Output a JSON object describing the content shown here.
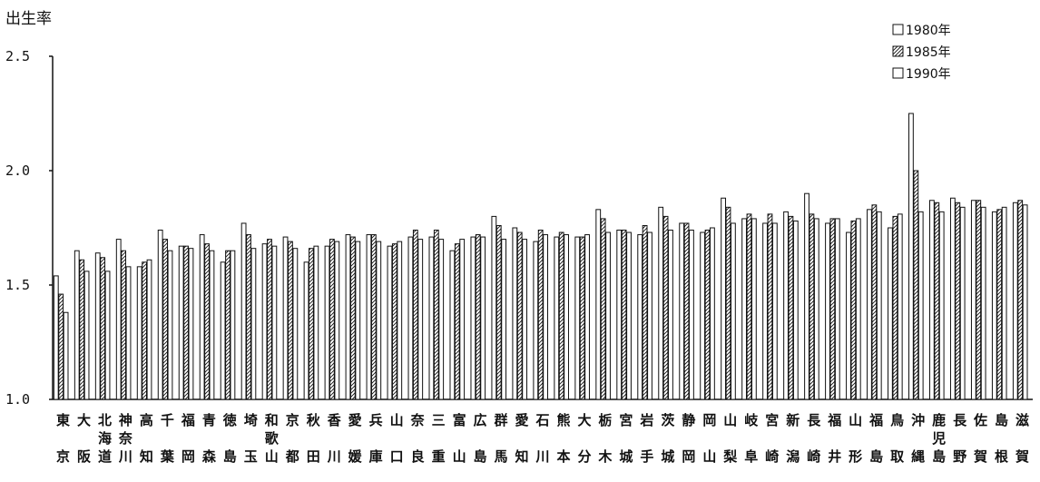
{
  "chart_data": {
    "type": "bar",
    "ylabel": "出生率",
    "ylim": [
      1.0,
      2.5
    ],
    "yticks": [
      "1.0",
      "1.5",
      "2.0",
      "2.5"
    ],
    "legend_position": "top-right",
    "categories": [
      [
        "東",
        "京"
      ],
      [
        "大",
        "阪"
      ],
      [
        "北",
        "海",
        "道"
      ],
      [
        "神",
        "奈",
        "川"
      ],
      [
        "高",
        "知"
      ],
      [
        "千",
        "葉"
      ],
      [
        "福",
        "岡"
      ],
      [
        "青",
        "森"
      ],
      [
        "徳",
        "島"
      ],
      [
        "埼",
        "玉"
      ],
      [
        "和",
        "歌",
        "山"
      ],
      [
        "京",
        "都"
      ],
      [
        "秋",
        "田"
      ],
      [
        "香",
        "川"
      ],
      [
        "愛",
        "媛"
      ],
      [
        "兵",
        "庫"
      ],
      [
        "山",
        "口"
      ],
      [
        "奈",
        "良"
      ],
      [
        "三",
        "重"
      ],
      [
        "富",
        "山"
      ],
      [
        "広",
        "島"
      ],
      [
        "群",
        "馬"
      ],
      [
        "愛",
        "知"
      ],
      [
        "石",
        "川"
      ],
      [
        "熊",
        "本"
      ],
      [
        "大",
        "分"
      ],
      [
        "栃",
        "木"
      ],
      [
        "宮",
        "城"
      ],
      [
        "岩",
        "手"
      ],
      [
        "茨",
        "城"
      ],
      [
        "静",
        "岡"
      ],
      [
        "岡",
        "山"
      ],
      [
        "山",
        "梨"
      ],
      [
        "岐",
        "阜"
      ],
      [
        "宮",
        "崎"
      ],
      [
        "新",
        "潟"
      ],
      [
        "長",
        "崎"
      ],
      [
        "福",
        "井"
      ],
      [
        "山",
        "形"
      ],
      [
        "福",
        "島"
      ],
      [
        "鳥",
        "取"
      ],
      [
        "沖",
        "縄"
      ],
      [
        "鹿",
        "児",
        "島"
      ],
      [
        "長",
        "野"
      ],
      [
        "佐",
        "賀"
      ],
      [
        "島",
        "根"
      ],
      [
        "滋",
        "賀"
      ]
    ],
    "series": [
      {
        "name": "1980年",
        "pattern": "blank",
        "values": [
          1.54,
          1.65,
          1.64,
          1.7,
          1.58,
          1.74,
          1.67,
          1.72,
          1.6,
          1.77,
          1.68,
          1.71,
          1.6,
          1.67,
          1.72,
          1.72,
          1.67,
          1.71,
          1.71,
          1.65,
          1.71,
          1.8,
          1.75,
          1.69,
          1.71,
          1.71,
          1.83,
          1.74,
          1.72,
          1.84,
          1.77,
          1.73,
          1.88,
          1.79,
          1.77,
          1.82,
          1.9,
          1.77,
          1.73,
          1.83,
          1.75,
          2.25,
          1.87,
          1.88,
          1.87,
          1.82,
          1.86
        ]
      },
      {
        "name": "1985年",
        "pattern": "hatched",
        "values": [
          1.46,
          1.61,
          1.62,
          1.65,
          1.6,
          1.7,
          1.67,
          1.68,
          1.65,
          1.72,
          1.7,
          1.69,
          1.66,
          1.7,
          1.71,
          1.72,
          1.68,
          1.74,
          1.74,
          1.68,
          1.72,
          1.76,
          1.73,
          1.74,
          1.73,
          1.71,
          1.79,
          1.74,
          1.76,
          1.8,
          1.77,
          1.74,
          1.84,
          1.81,
          1.81,
          1.8,
          1.81,
          1.79,
          1.78,
          1.85,
          1.8,
          2.0,
          1.86,
          1.86,
          1.87,
          1.83,
          1.87
        ]
      },
      {
        "name": "1990年",
        "pattern": "blank",
        "values": [
          1.38,
          1.56,
          1.56,
          1.58,
          1.61,
          1.65,
          1.66,
          1.65,
          1.65,
          1.66,
          1.67,
          1.66,
          1.67,
          1.69,
          1.69,
          1.69,
          1.69,
          1.7,
          1.7,
          1.7,
          1.71,
          1.7,
          1.7,
          1.72,
          1.72,
          1.72,
          1.73,
          1.73,
          1.73,
          1.74,
          1.74,
          1.75,
          1.77,
          1.79,
          1.77,
          1.78,
          1.79,
          1.79,
          1.79,
          1.82,
          1.81,
          1.82,
          1.82,
          1.84,
          1.84,
          1.84,
          1.85
        ]
      }
    ]
  }
}
